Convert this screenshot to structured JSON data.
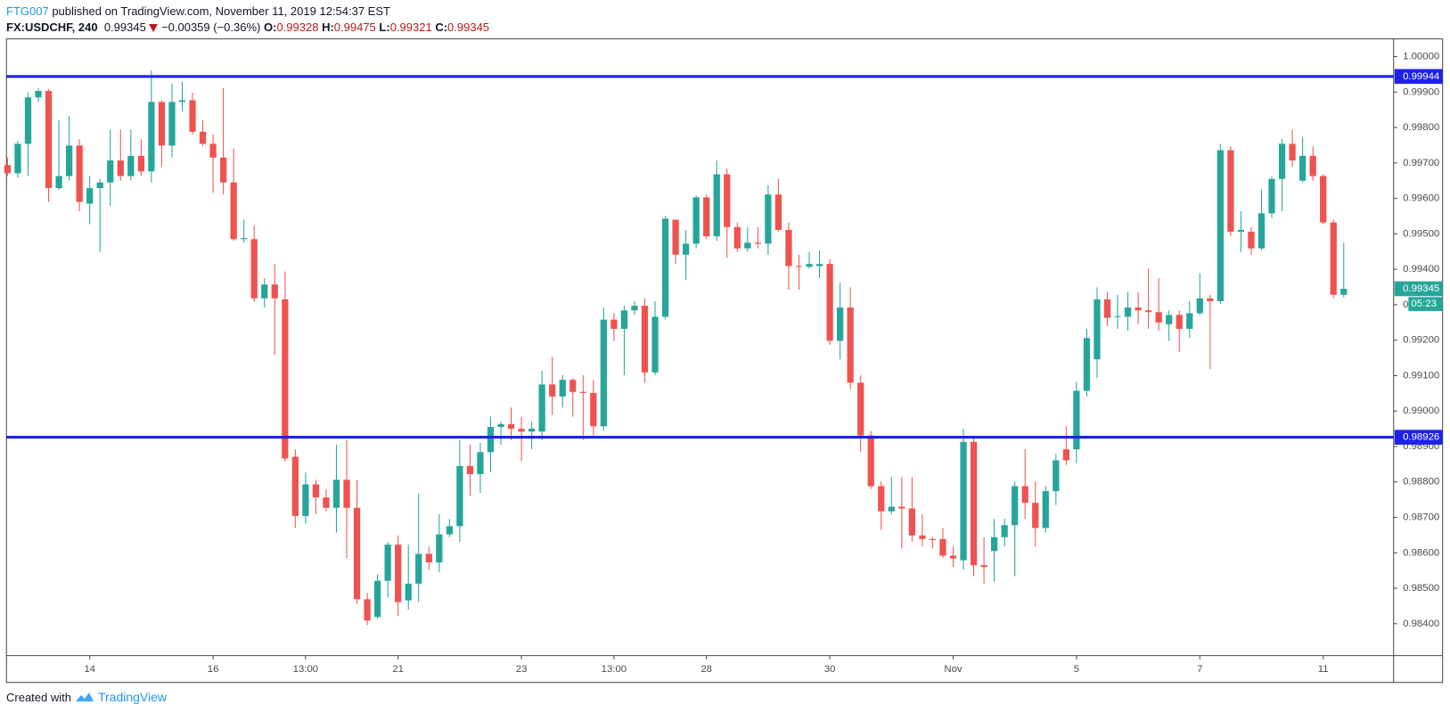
{
  "header": {
    "author": "FTG007",
    "published": "published on TradingView.com, November 11, 2019 12:54:37 EST",
    "symbol": "FX:USDCHF, 240",
    "last": "0.99345",
    "change": "−0.00359 (−0.36%)",
    "ohlc": [
      {
        "label": "O:",
        "value": "0.99328"
      },
      {
        "label": "H:",
        "value": "0.99475"
      },
      {
        "label": "L:",
        "value": "0.99321"
      },
      {
        "label": "C:",
        "value": "0.99345"
      }
    ]
  },
  "footer": {
    "created": "Created with",
    "brand": "TradingView"
  },
  "chart_data": {
    "type": "candlestick",
    "up_color": "#26a69a",
    "down_color": "#ef5350",
    "open": [
      0.99694,
      0.99671,
      0.99754,
      0.99885,
      0.99903,
      0.99629,
      0.99663,
      0.99749,
      0.99585,
      0.99629,
      0.99645,
      0.99707,
      0.99663,
      0.9972,
      0.99676,
      0.99872,
      0.99749,
      0.99872,
      0.99877,
      0.99788,
      0.99754,
      0.99715,
      0.99645,
      0.99485,
      0.99485,
      0.99318,
      0.99357,
      0.99315,
      0.98871,
      0.98704,
      0.98793,
      0.98756,
      0.98727,
      0.98806,
      0.98727,
      0.98469,
      0.98419,
      0.98521,
      0.98623,
      0.98466,
      0.98513,
      0.98597,
      0.98573,
      0.98652,
      0.98675,
      0.98845,
      0.98822,
      0.98884,
      0.98955,
      0.98963,
      0.9895,
      0.98942,
      0.98942,
      0.99075,
      0.99041,
      0.99088,
      0.99054,
      0.99051,
      0.98957,
      0.99258,
      0.99232,
      0.99284,
      0.99297,
      0.99109,
      0.99266,
      0.9954,
      0.99441,
      0.99472,
      0.99603,
      0.99493,
      0.99668,
      0.99519,
      0.99459,
      0.99475,
      0.99472,
      0.99611,
      0.99511,
      0.99409,
      0.99407,
      0.99409,
      0.99415,
      0.99198,
      0.99292,
      0.9908,
      0.98931,
      0.98788,
      0.98717,
      0.9873,
      0.98725,
      0.98649,
      0.98639,
      0.98639,
      0.98592,
      0.98579,
      0.98913,
      0.98565,
      0.98605,
      0.98644,
      0.98678,
      0.98788,
      0.98741,
      0.9867,
      0.98774,
      0.98892,
      0.98892,
      0.99057,
      0.99146,
      0.99315,
      0.99266,
      0.99266,
      0.99292,
      0.99284,
      0.99279,
      0.99245,
      0.99271,
      0.99232,
      0.99276,
      0.99318,
      0.9931,
      0.99736,
      0.99506,
      0.99506,
      0.99459,
      0.99558,
      0.99655,
      0.99754,
      0.9965,
      0.9972,
      0.99663,
      0.99532,
      0.99328
    ],
    "high": [
      0.99715,
      0.99762,
      0.99898,
      0.99911,
      0.99909,
      0.9982,
      0.99833,
      0.99767,
      0.99663,
      0.99655,
      0.99794,
      0.99794,
      0.99794,
      0.99767,
      0.99961,
      0.99877,
      0.99924,
      0.99929,
      0.99898,
      0.9982,
      0.99781,
      0.99911,
      0.99741,
      0.9954,
      0.99524,
      0.99375,
      0.99415,
      0.99394,
      0.98892,
      0.98827,
      0.98806,
      0.9878,
      0.98905,
      0.98918,
      0.98806,
      0.98487,
      0.98539,
      0.98631,
      0.98649,
      0.98623,
      0.98767,
      0.98618,
      0.98709,
      0.98696,
      0.98918,
      0.98905,
      0.9891,
      0.98984,
      0.9897,
      0.9901,
      0.98984,
      0.9897,
      0.99114,
      0.99153,
      0.99101,
      0.99093,
      0.99101,
      0.99088,
      0.99292,
      0.99276,
      0.99297,
      0.9931,
      0.99318,
      0.9931,
      0.99551,
      0.9954,
      0.99511,
      0.99608,
      0.99611,
      0.99707,
      0.99684,
      0.99532,
      0.99519,
      0.99519,
      0.99637,
      0.99655,
      0.99532,
      0.99441,
      0.99449,
      0.99454,
      0.99428,
      0.99362,
      0.99349,
      0.99101,
      0.98944,
      0.98801,
      0.98814,
      0.98814,
      0.98814,
      0.98709,
      0.98644,
      0.9867,
      0.98618,
      0.9895,
      0.98931,
      0.98644,
      0.98696,
      0.98696,
      0.98801,
      0.98892,
      0.98801,
      0.98788,
      0.98879,
      0.98957,
      0.99083,
      0.99232,
      0.99349,
      0.99336,
      0.99328,
      0.99336,
      0.99336,
      0.99402,
      0.99375,
      0.99284,
      0.99284,
      0.9931,
      0.99389,
      0.99328,
      0.99754,
      0.99747,
      0.99564,
      0.99519,
      0.99624,
      0.99663,
      0.99767,
      0.99794,
      0.99773,
      0.99747,
      0.99668,
      0.9954,
      0.99475
    ],
    "low": [
      0.99663,
      0.99658,
      0.99663,
      0.99872,
      0.9959,
      0.99624,
      0.9965,
      0.99564,
      0.99527,
      0.99449,
      0.99579,
      0.9965,
      0.9965,
      0.99663,
      0.99645,
      0.99689,
      0.99715,
      0.99846,
      0.99781,
      0.99747,
      0.99616,
      0.99611,
      0.9948,
      0.99475,
      0.99308,
      0.99292,
      0.99159,
      0.98858,
      0.9867,
      0.98683,
      0.98709,
      0.98717,
      0.98657,
      0.98584,
      0.98456,
      0.98396,
      0.98414,
      0.98474,
      0.98422,
      0.9844,
      0.98461,
      0.98552,
      0.98545,
      0.98644,
      0.98631,
      0.98761,
      0.98769,
      0.98827,
      0.98905,
      0.98918,
      0.98858,
      0.98892,
      0.98918,
      0.98989,
      0.9901,
      0.98984,
      0.98918,
      0.98931,
      0.98944,
      0.99198,
      0.99101,
      0.99271,
      0.9908,
      0.99101,
      0.99258,
      0.99415,
      0.9937,
      0.99459,
      0.99485,
      0.9948,
      0.99433,
      0.99449,
      0.99449,
      0.99459,
      0.99441,
      0.99506,
      0.99342,
      0.99342,
      0.99402,
      0.99375,
      0.99187,
      0.99146,
      0.99062,
      0.98884,
      0.9878,
      0.98665,
      0.98709,
      0.98612,
      0.98631,
      0.98618,
      0.98612,
      0.98586,
      0.9856,
      0.98552,
      0.98534,
      0.98513,
      0.98518,
      0.98618,
      0.98534,
      0.98696,
      0.98618,
      0.98657,
      0.98735,
      0.98848,
      0.98853,
      0.99041,
      0.99093,
      0.9924,
      0.99232,
      0.99227,
      0.99245,
      0.99232,
      0.99227,
      0.99198,
      0.99166,
      0.99206,
      0.99271,
      0.99119,
      0.99302,
      0.99493,
      0.99449,
      0.99441,
      0.99454,
      0.99545,
      0.99564,
      0.99689,
      0.99645,
      0.9965,
      0.99527,
      0.99318,
      0.99321
    ],
    "close": [
      0.99671,
      0.99754,
      0.99885,
      0.99903,
      0.99629,
      0.99663,
      0.99749,
      0.9959,
      0.99629,
      0.99645,
      0.99707,
      0.99663,
      0.9972,
      0.99676,
      0.99872,
      0.99749,
      0.99872,
      0.99877,
      0.99788,
      0.99754,
      0.99715,
      0.99645,
      0.99485,
      0.99488,
      0.99318,
      0.99357,
      0.99318,
      0.98866,
      0.98704,
      0.98793,
      0.98756,
      0.98727,
      0.98806,
      0.98727,
      0.98469,
      0.98409,
      0.98521,
      0.98623,
      0.98461,
      0.98513,
      0.98597,
      0.98573,
      0.98652,
      0.98675,
      0.98845,
      0.98822,
      0.98884,
      0.98955,
      0.98963,
      0.9895,
      0.98942,
      0.9895,
      0.99075,
      0.99041,
      0.99088,
      0.99054,
      0.99051,
      0.98957,
      0.99258,
      0.99232,
      0.99284,
      0.99297,
      0.99109,
      0.99266,
      0.99543,
      0.99441,
      0.99472,
      0.99603,
      0.99493,
      0.99668,
      0.99519,
      0.99459,
      0.99475,
      0.99472,
      0.99611,
      0.99511,
      0.99409,
      0.99407,
      0.99415,
      0.99415,
      0.99198,
      0.99292,
      0.9908,
      0.98931,
      0.98788,
      0.98717,
      0.9873,
      0.98725,
      0.98649,
      0.98639,
      0.98636,
      0.98592,
      0.98584,
      0.98913,
      0.98565,
      0.9856,
      0.98644,
      0.98678,
      0.98788,
      0.98741,
      0.9867,
      0.98774,
      0.98861,
      0.98861,
      0.99057,
      0.99206,
      0.99315,
      0.99263,
      0.99268,
      0.99292,
      0.99284,
      0.99279,
      0.9925,
      0.99271,
      0.99232,
      0.99276,
      0.99318,
      0.9931,
      0.99736,
      0.99506,
      0.99511,
      0.99459,
      0.99558,
      0.99655,
      0.99754,
      0.99707,
      0.9972,
      0.99663,
      0.99532,
      0.99328,
      0.99345
    ],
    "xlim": [
      -0.1,
      134.85
    ],
    "xticks": [
      {
        "value": 8,
        "label": "14"
      },
      {
        "value": 20,
        "label": "16"
      },
      {
        "value": 29,
        "label": "13:00"
      },
      {
        "value": 38,
        "label": "21"
      },
      {
        "value": 50,
        "label": "23"
      },
      {
        "value": 59,
        "label": "13:00"
      },
      {
        "value": 68,
        "label": "28"
      },
      {
        "value": 80,
        "label": "30"
      },
      {
        "value": 92,
        "label": "Nov"
      },
      {
        "value": 104,
        "label": "5"
      },
      {
        "value": 116,
        "label": "7"
      },
      {
        "value": 128,
        "label": "11"
      }
    ],
    "ylim": [
      0.9831,
      1.0005
    ],
    "yticks": [
      {
        "value": 1,
        "label": "1.00000"
      },
      {
        "value": 0.999,
        "label": "0.99900"
      },
      {
        "value": 0.998,
        "label": "0.99800"
      },
      {
        "value": 0.997,
        "label": "0.99700"
      },
      {
        "value": 0.996,
        "label": "0.99600"
      },
      {
        "value": 0.995,
        "label": "0.99500"
      },
      {
        "value": 0.994,
        "label": "0.99400"
      },
      {
        "value": 0.993,
        "label": "0.99300"
      },
      {
        "value": 0.992,
        "label": "0.99200"
      },
      {
        "value": 0.991,
        "label": "0.99100"
      },
      {
        "value": 0.99,
        "label": "0.99000"
      },
      {
        "value": 0.989,
        "label": "0.98900"
      },
      {
        "value": 0.988,
        "label": "0.98800"
      },
      {
        "value": 0.987,
        "label": "0.98700"
      },
      {
        "value": 0.986,
        "label": "0.98600"
      },
      {
        "value": 0.985,
        "label": "0.98500"
      },
      {
        "value": 0.984,
        "label": "0.98400"
      }
    ],
    "hlines": [
      {
        "value": 0.99944,
        "color": "#1e22e6"
      },
      {
        "value": 0.98926,
        "color": "#1e22e6"
      }
    ],
    "countdown": "05:23"
  }
}
